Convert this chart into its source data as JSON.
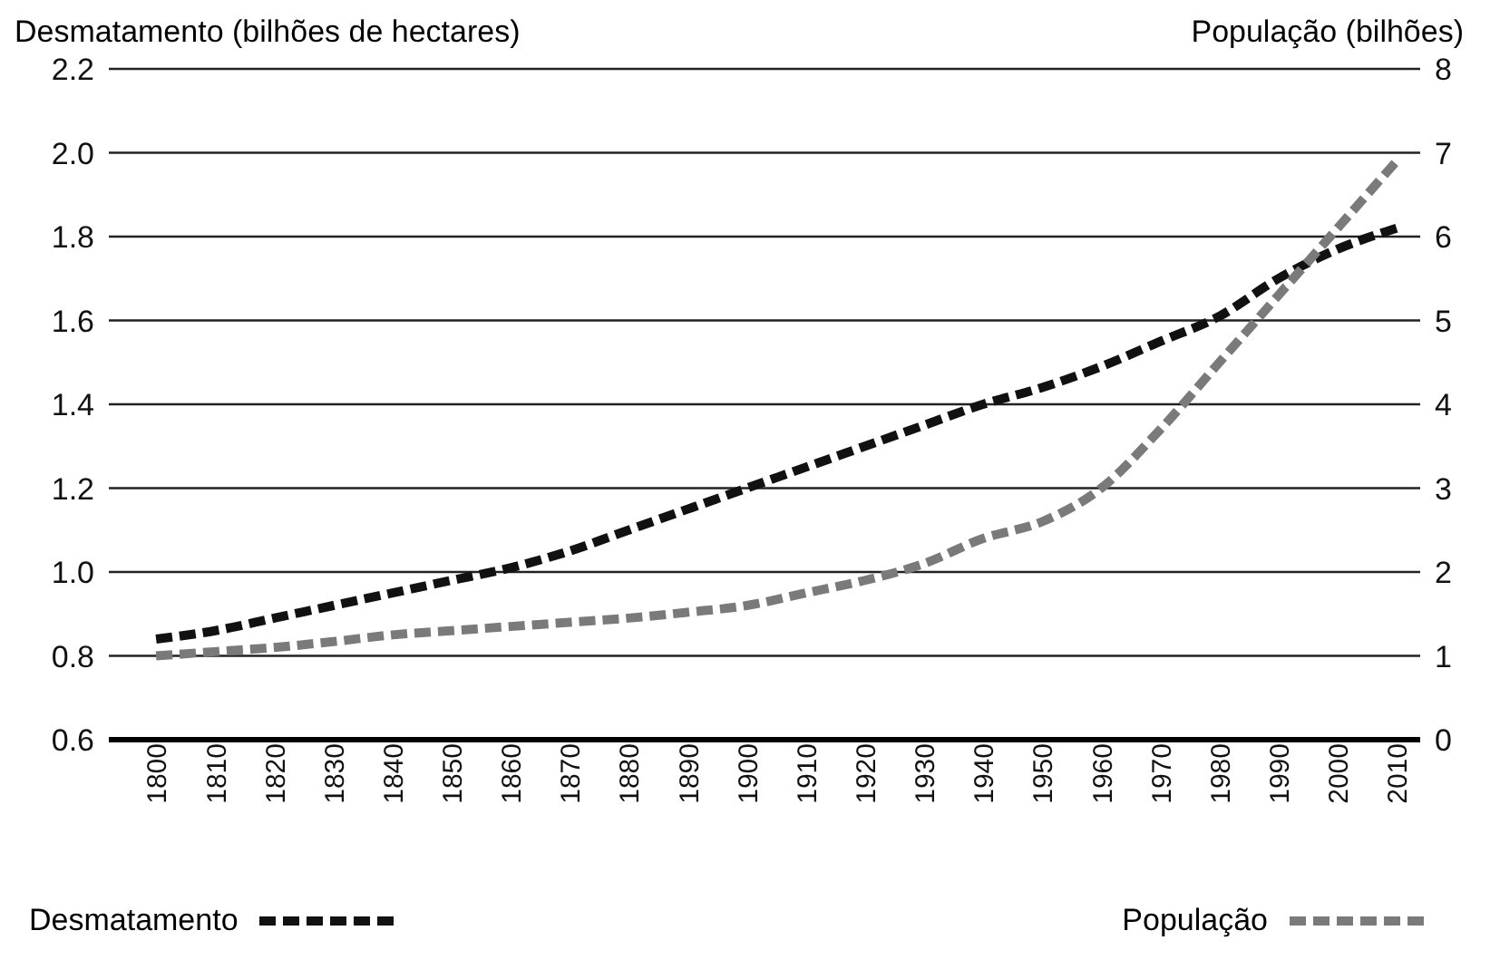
{
  "chart_data": {
    "type": "line",
    "ylabel": "Desmatamento (bilhões de hectares)",
    "y2label": "População (bilhões)",
    "x": [
      1800,
      1810,
      1820,
      1830,
      1840,
      1850,
      1860,
      1870,
      1880,
      1890,
      1900,
      1910,
      1920,
      1930,
      1940,
      1950,
      1960,
      1970,
      1980,
      1990,
      2000,
      2010
    ],
    "series": [
      {
        "name": "Desmatamento",
        "color": "#111111",
        "values": [
          0.84,
          0.86,
          0.89,
          0.92,
          0.95,
          0.98,
          1.01,
          1.05,
          1.1,
          1.15,
          1.2,
          1.25,
          1.3,
          1.35,
          1.4,
          1.44,
          1.49,
          1.55,
          1.61,
          1.7,
          1.77,
          1.82
        ]
      },
      {
        "name": "População",
        "color": "#7a7a7a",
        "axis": "y2",
        "values": [
          1.0,
          1.05,
          1.1,
          1.17,
          1.25,
          1.3,
          1.35,
          1.4,
          1.45,
          1.52,
          1.6,
          1.75,
          1.9,
          2.1,
          2.4,
          2.6,
          3.0,
          3.7,
          4.5,
          5.3,
          6.1,
          6.9
        ]
      }
    ],
    "xlim": [
      1792,
      2014
    ],
    "xticks": [
      1800,
      1810,
      1820,
      1830,
      1840,
      1850,
      1860,
      1870,
      1880,
      1890,
      1900,
      1910,
      1920,
      1930,
      1940,
      1950,
      1960,
      1970,
      1980,
      1990,
      2000,
      2010
    ],
    "ylim": [
      0.6,
      2.2
    ],
    "yticks": [
      0.6,
      0.8,
      {
        "value": 1,
        "label": "1.0"
      },
      1.2,
      1.4,
      1.6,
      1.8,
      {
        "value": 2,
        "label": "2.0"
      },
      2.2
    ],
    "y2lim": [
      0,
      8
    ],
    "y2ticks": [
      0,
      1,
      2,
      3,
      4,
      5,
      6,
      7,
      8
    ],
    "grid": "y",
    "legend": "bottom",
    "line_style": "dashed",
    "marker": "none"
  }
}
